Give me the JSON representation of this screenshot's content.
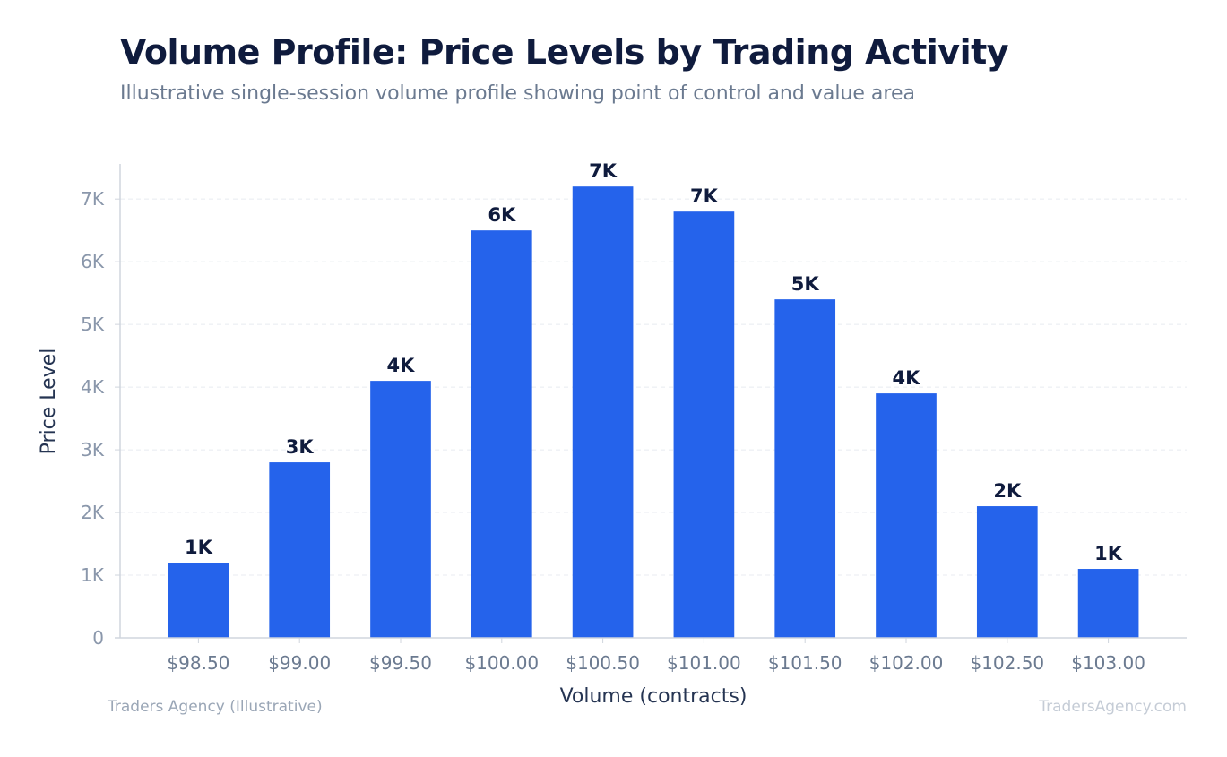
{
  "title": "Volume Profile: Price Levels by Trading Activity",
  "subtitle": "Illustrative single-session volume profile showing point of control and value area",
  "source": "Traders Agency (Illustrative)",
  "watermark": "TradersAgency.com",
  "colors": {
    "bar": "#2563eb",
    "title": "#0f1b3d",
    "subtitle": "#6b7a90",
    "tick": "#8a97ab",
    "axis_label": "#253452",
    "grid": "#e8ebf0",
    "axis_line": "#d0d5dd",
    "data_label": "#0f1b3d"
  },
  "chart_data": {
    "type": "bar",
    "categories": [
      "$98.50",
      "$99.00",
      "$99.50",
      "$100.00",
      "$100.50",
      "$101.00",
      "$101.50",
      "$102.00",
      "$102.50",
      "$103.00"
    ],
    "values": [
      1200,
      2800,
      4100,
      6500,
      7200,
      6800,
      5400,
      3900,
      2100,
      1100
    ],
    "data_labels": [
      "1K",
      "3K",
      "4K",
      "6K",
      "7K",
      "7K",
      "5K",
      "4K",
      "2K",
      "1K"
    ],
    "xlabel": "Volume (contracts)",
    "ylabel": "Price Level",
    "ylim": [
      0,
      7560
    ],
    "yticks": [
      0,
      1000,
      2000,
      3000,
      4000,
      5000,
      6000,
      7000
    ],
    "ytick_labels": [
      "0",
      "1K",
      "2K",
      "3K",
      "4K",
      "5K",
      "6K",
      "7K"
    ],
    "grid": true,
    "legend": "none"
  }
}
